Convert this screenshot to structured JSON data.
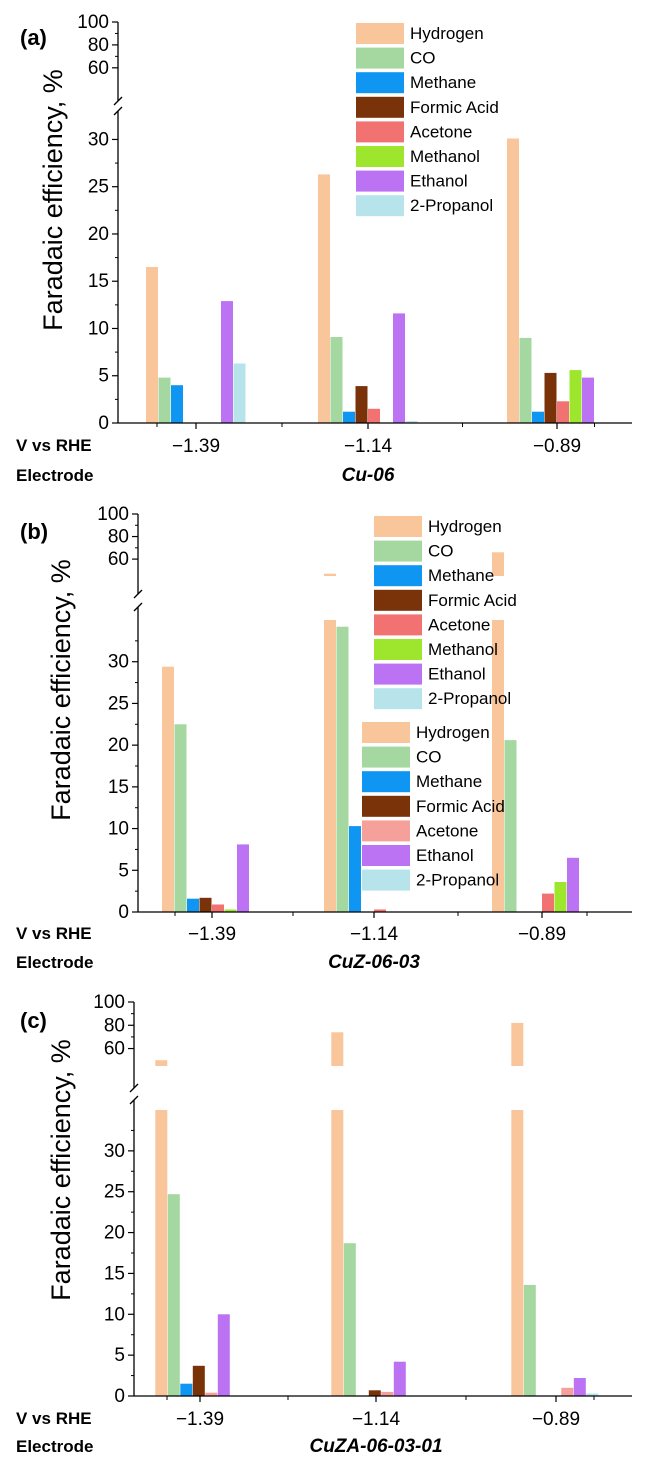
{
  "colors": {
    "Hydrogen": "#F9C69B",
    "CO": "#A4D8A0",
    "Methane": "#0F95F2",
    "Formic Acid": "#7A3208",
    "Acetone": "#F27171",
    "Acetone_c": "#F5A09A",
    "Methanol": "#9DE62D",
    "Ethanol": "#BB73F3",
    "2-Propanol": "#B6E4EA"
  },
  "row_labels": {
    "potential": "V vs RHE",
    "electrode": "Electrode"
  },
  "chart_data": [
    {
      "type": "bar",
      "panel_label": "(a)",
      "electrode": "Cu-06",
      "ylabel": "Faradaic efficiency, %",
      "axis_break": true,
      "ylim_lower": [
        0,
        31
      ],
      "ylim_upper": [
        45,
        100
      ],
      "yticks_lower": [
        0,
        5,
        10,
        15,
        20,
        25,
        30
      ],
      "yticks_upper": [
        60,
        80,
        100
      ],
      "categories": [
        "−1.39",
        "−1.14",
        "−0.89"
      ],
      "legend_position": "top-right",
      "series": [
        {
          "name": "Hydrogen",
          "values": [
            16.5,
            26.3,
            30.1
          ]
        },
        {
          "name": "CO",
          "values": [
            4.8,
            9.1,
            9.0
          ]
        },
        {
          "name": "Methane",
          "values": [
            4.0,
            1.2,
            1.2
          ]
        },
        {
          "name": "Formic Acid",
          "values": [
            0,
            3.9,
            5.3
          ]
        },
        {
          "name": "Acetone",
          "values": [
            0,
            1.5,
            2.3
          ]
        },
        {
          "name": "Methanol",
          "values": [
            0,
            0,
            5.6
          ]
        },
        {
          "name": "Ethanol",
          "values": [
            12.9,
            11.6,
            4.8
          ]
        },
        {
          "name": "2-Propanol",
          "values": [
            6.3,
            0.2,
            0
          ]
        }
      ]
    },
    {
      "type": "bar",
      "panel_label": "(b)",
      "electrode": "CuZ-06-03",
      "ylabel": "Faradaic efficiency, %",
      "axis_break": true,
      "ylim_lower": [
        0,
        35
      ],
      "ylim_upper": [
        45,
        100
      ],
      "yticks_lower": [
        0,
        5,
        10,
        15,
        20,
        25,
        30
      ],
      "yticks_upper": [
        60,
        80,
        100
      ],
      "categories": [
        "−1.39",
        "−1.14",
        "−0.89"
      ],
      "legend_position": "top-right",
      "series": [
        {
          "name": "Hydrogen",
          "values": [
            29.4,
            47.0,
            66.0
          ]
        },
        {
          "name": "CO",
          "values": [
            22.5,
            34.2,
            20.6
          ]
        },
        {
          "name": "Methane",
          "values": [
            1.6,
            10.3,
            0
          ]
        },
        {
          "name": "Formic Acid",
          "values": [
            1.7,
            0,
            0
          ]
        },
        {
          "name": "Acetone",
          "values": [
            0.9,
            0.3,
            2.2
          ]
        },
        {
          "name": "Methanol",
          "values": [
            0.3,
            0,
            3.6
          ]
        },
        {
          "name": "Ethanol",
          "values": [
            8.1,
            0,
            6.5
          ]
        },
        {
          "name": "2-Propanol",
          "values": [
            0,
            0,
            0
          ]
        }
      ]
    },
    {
      "type": "bar",
      "panel_label": "(c)",
      "electrode": "CuZA-06-03-01",
      "ylabel": "Faradaic efficiency, %",
      "axis_break": true,
      "ylim_lower": [
        0,
        35
      ],
      "ylim_upper": [
        45,
        100
      ],
      "yticks_lower": [
        0,
        5,
        10,
        15,
        20,
        25,
        30
      ],
      "yticks_upper": [
        60,
        80,
        100
      ],
      "categories": [
        "−1.39",
        "−1.14",
        "−0.89"
      ],
      "legend_position": "top-right",
      "series": [
        {
          "name": "Hydrogen",
          "values": [
            50.0,
            74.0,
            82.0
          ]
        },
        {
          "name": "CO",
          "values": [
            24.7,
            18.7,
            13.6
          ]
        },
        {
          "name": "Methane",
          "values": [
            1.5,
            0,
            0
          ]
        },
        {
          "name": "Formic Acid",
          "values": [
            3.7,
            0.7,
            0
          ]
        },
        {
          "name": "Acetone",
          "values": [
            0.4,
            0.5,
            1.0
          ]
        },
        {
          "name": "Ethanol",
          "values": [
            10.0,
            4.2,
            2.2
          ]
        },
        {
          "name": "2-Propanol",
          "values": [
            0,
            0,
            0.3
          ]
        }
      ]
    }
  ]
}
